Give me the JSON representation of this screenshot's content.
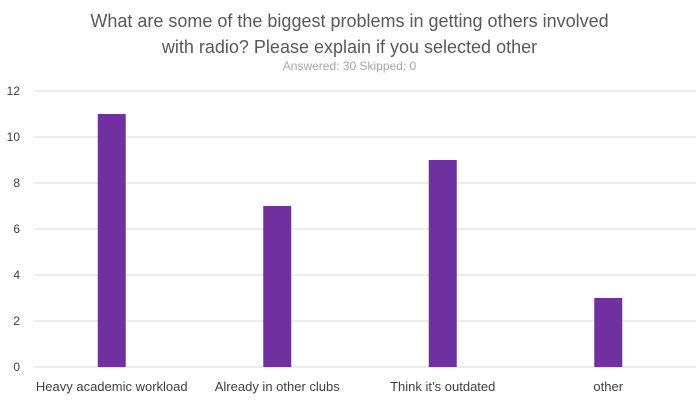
{
  "chart_data": {
    "type": "bar",
    "title": "What are some of the biggest problems in getting others involved\nwith radio? Please explain if you selected other",
    "subtitle": "Answered: 30  Skipped: 0",
    "categories": [
      "Heavy academic workload",
      "Already in other clubs",
      "Think it’s outdated",
      "other"
    ],
    "values": [
      11,
      7,
      9,
      3
    ],
    "ylim": [
      0,
      12
    ],
    "yticks": [
      0,
      2,
      4,
      6,
      8,
      10,
      12
    ],
    "grid": true,
    "bar_color": "#7030a0",
    "grid_color": "#d9d9d9",
    "xlabel": "",
    "ylabel": ""
  }
}
